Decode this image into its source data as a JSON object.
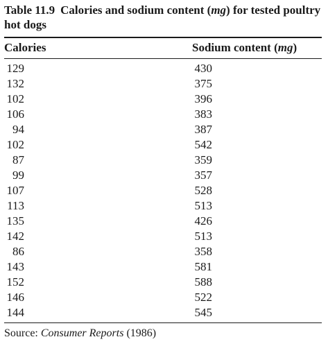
{
  "caption": {
    "label": "Table 11.9",
    "text_before": "Calories and sodium content (",
    "unit": "mg",
    "text_after": ") for tested poultry hot dogs"
  },
  "headers": {
    "calories": "Calories",
    "sodium_before": "Sodium content (",
    "sodium_unit": "mg",
    "sodium_after": ")"
  },
  "rows": [
    {
      "calories": "129",
      "sodium": "430"
    },
    {
      "calories": "132",
      "sodium": "375"
    },
    {
      "calories": "102",
      "sodium": "396"
    },
    {
      "calories": "106",
      "sodium": "383"
    },
    {
      "calories": "94",
      "sodium": "387"
    },
    {
      "calories": "102",
      "sodium": "542"
    },
    {
      "calories": "87",
      "sodium": "359"
    },
    {
      "calories": "99",
      "sodium": "357"
    },
    {
      "calories": "107",
      "sodium": "528"
    },
    {
      "calories": "113",
      "sodium": "513"
    },
    {
      "calories": "135",
      "sodium": "426"
    },
    {
      "calories": "142",
      "sodium": "513"
    },
    {
      "calories": "86",
      "sodium": "358"
    },
    {
      "calories": "143",
      "sodium": "581"
    },
    {
      "calories": "152",
      "sodium": "588"
    },
    {
      "calories": "146",
      "sodium": "522"
    },
    {
      "calories": "144",
      "sodium": "545"
    }
  ],
  "source": {
    "prefix": "Source: ",
    "publication": "Consumer Reports",
    "year": " (1986)"
  }
}
